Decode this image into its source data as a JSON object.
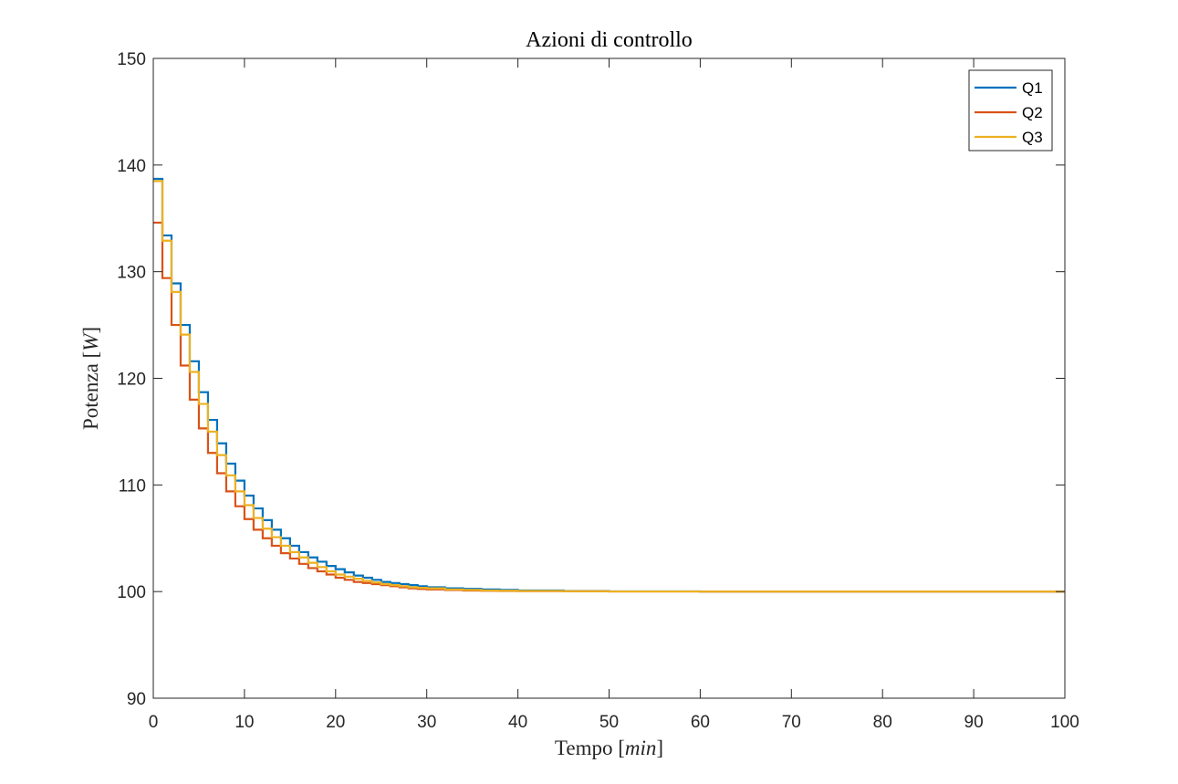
{
  "chart_data": {
    "type": "line",
    "step": true,
    "title": "Azioni di controllo",
    "xlabel": "Tempo",
    "xlabel_unit": "min",
    "ylabel": "Potenza",
    "ylabel_unit": "W",
    "xlim": [
      0,
      100
    ],
    "ylim": [
      90,
      150
    ],
    "xticks": [
      0,
      10,
      20,
      30,
      40,
      50,
      60,
      70,
      80,
      90,
      100
    ],
    "yticks": [
      90,
      100,
      110,
      120,
      130,
      140,
      150
    ],
    "grid": false,
    "legend_position": "top-right",
    "x": [
      0,
      1,
      2,
      3,
      4,
      5,
      6,
      7,
      8,
      9,
      10,
      11,
      12,
      13,
      14,
      15,
      16,
      17,
      18,
      19,
      20,
      21,
      22,
      23,
      24,
      25,
      26,
      27,
      28,
      29,
      30,
      32,
      34,
      36,
      38,
      40,
      45,
      50,
      60,
      70,
      80,
      90,
      100
    ],
    "series": [
      {
        "name": "Q1",
        "color": "#0072BD",
        "values": [
          138.7,
          133.4,
          128.9,
          125.0,
          121.6,
          118.7,
          116.1,
          113.9,
          112.0,
          110.4,
          109.0,
          107.8,
          106.7,
          105.8,
          105.0,
          104.3,
          103.7,
          103.2,
          102.8,
          102.4,
          102.1,
          101.8,
          101.5,
          101.3,
          101.1,
          100.9,
          100.8,
          100.7,
          100.6,
          100.5,
          100.4,
          100.3,
          100.25,
          100.2,
          100.15,
          100.1,
          100.05,
          100.02,
          100.0,
          100.0,
          100.0,
          100.0,
          100.0
        ]
      },
      {
        "name": "Q2",
        "color": "#D95319",
        "values": [
          134.6,
          129.4,
          125.0,
          121.2,
          118.0,
          115.3,
          113.0,
          111.1,
          109.4,
          108.0,
          106.8,
          105.8,
          105.0,
          104.3,
          103.6,
          103.1,
          102.6,
          102.2,
          101.9,
          101.6,
          101.3,
          101.1,
          100.9,
          100.8,
          100.7,
          100.6,
          100.5,
          100.4,
          100.3,
          100.25,
          100.2,
          100.15,
          100.1,
          100.08,
          100.06,
          100.04,
          100.02,
          100.01,
          100.0,
          100.0,
          100.0,
          100.0,
          100.0
        ]
      },
      {
        "name": "Q3",
        "color": "#EDB120",
        "values": [
          138.5,
          132.9,
          128.1,
          124.1,
          120.6,
          117.6,
          115.0,
          112.8,
          110.9,
          109.4,
          108.1,
          106.9,
          105.9,
          105.1,
          104.3,
          103.7,
          103.2,
          102.7,
          102.3,
          101.9,
          101.6,
          101.4,
          101.2,
          101.0,
          100.85,
          100.7,
          100.6,
          100.5,
          100.4,
          100.35,
          100.3,
          100.2,
          100.15,
          100.1,
          100.08,
          100.06,
          100.03,
          100.01,
          100.0,
          100.0,
          100.0,
          100.0,
          100.0
        ]
      }
    ]
  }
}
